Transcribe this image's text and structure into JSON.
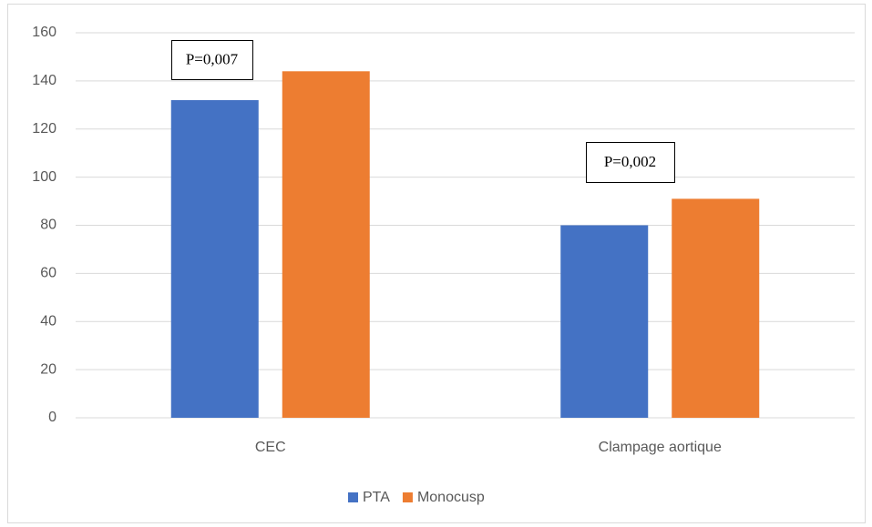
{
  "chart_data": {
    "type": "bar",
    "categories": [
      "CEC",
      "Clampage aortique"
    ],
    "series": [
      {
        "name": "PTA",
        "color": "#4472c4",
        "values": [
          132,
          80
        ]
      },
      {
        "name": "Monocusp",
        "color": "#ed7d31",
        "values": [
          144,
          91
        ]
      }
    ],
    "ylim": [
      0,
      160
    ],
    "yticks": [
      0,
      20,
      40,
      60,
      80,
      100,
      120,
      140,
      160
    ],
    "grid": true,
    "annotations": [
      "P=0,007",
      "P=0,002"
    ],
    "legend": "bottom"
  }
}
